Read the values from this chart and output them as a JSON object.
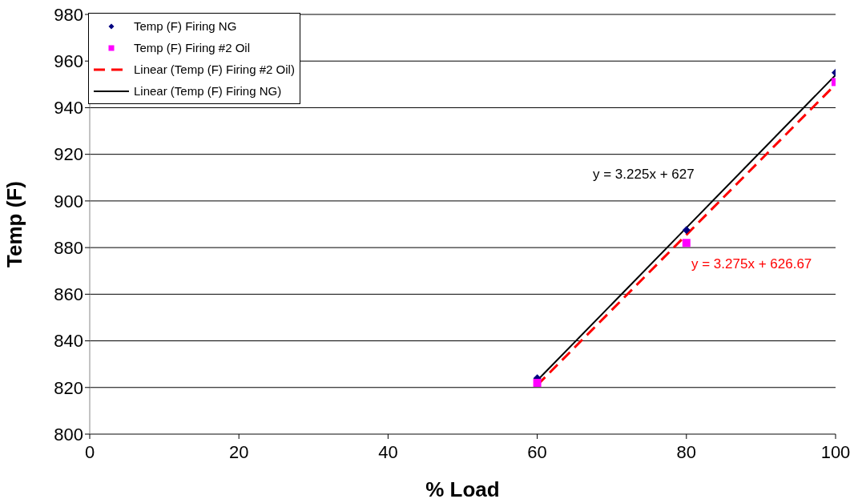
{
  "chart_data": {
    "type": "scatter",
    "xlabel": "% Load",
    "ylabel": "Temp (F)",
    "x": [
      60,
      80,
      100
    ],
    "series": [
      {
        "name": "Temp (F) Firing NG",
        "color": "#000080",
        "values": [
          824,
          887.5,
          955
        ],
        "marker": "diamond"
      },
      {
        "name": "Temp (F) Firing #2 Oil",
        "color": "#ff00ff",
        "values": [
          822,
          882,
          951
        ],
        "marker": "square"
      },
      {
        "name": "Linear (Temp (F) Firing #2 Oil)",
        "type": "line",
        "color": "#ff0000",
        "values": [
          821,
          885.5,
          950
        ],
        "line_style": "dashed",
        "marker": "none"
      },
      {
        "name": "Linear (Temp (F) Firing NG)",
        "type": "line",
        "color": "#000000",
        "values": [
          823,
          888.5,
          954
        ],
        "line_style": "solid",
        "marker": "none"
      }
    ],
    "annotations": [
      "y = 3.225x + 627",
      "y = 3.275x + 626.67"
    ],
    "xlim": [
      0,
      100
    ],
    "xticks": [
      0,
      20,
      40,
      60,
      80,
      100
    ],
    "ylim": [
      800,
      980
    ],
    "yticks": [
      800,
      820,
      840,
      860,
      880,
      900,
      920,
      940,
      960,
      980
    ],
    "grid": "y",
    "legend": "top left"
  }
}
